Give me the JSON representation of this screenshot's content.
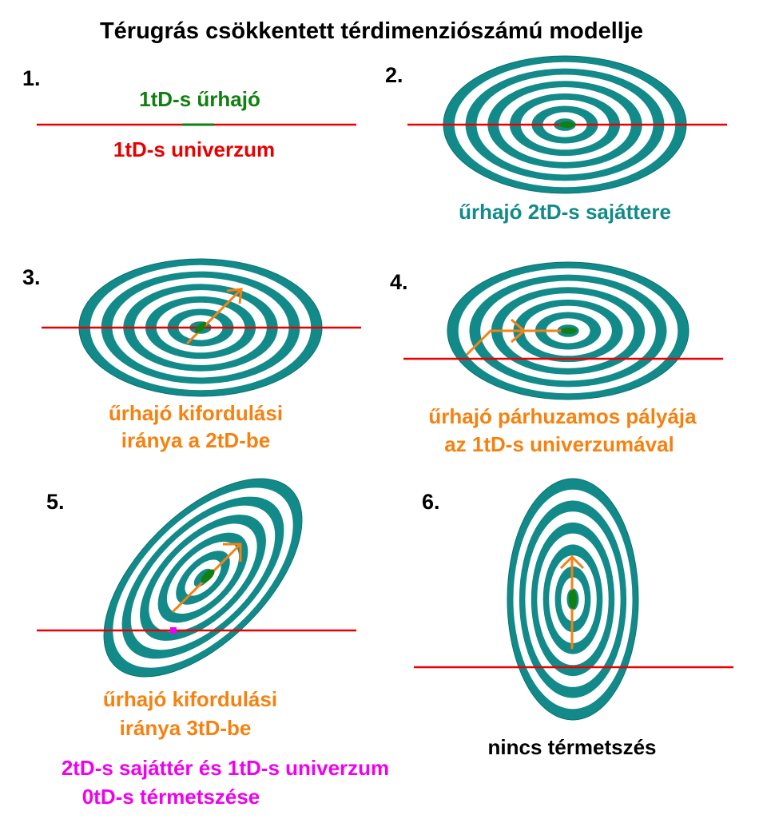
{
  "title": "Térugrás csökkentett térdimenziószámú modellje",
  "colors": {
    "teal": "#138a8a",
    "red": "#e80000",
    "green": "#108010",
    "orange": "#f58210",
    "magenta": "#f000f0",
    "black": "#000000"
  },
  "panels": [
    {
      "number": "1.",
      "labels": [
        "1tD-s űrhajó",
        "1tD-s univerzum"
      ]
    },
    {
      "number": "2.",
      "labels": [
        "űrhajó 2tD-s sajáttere"
      ]
    },
    {
      "number": "3.",
      "labels": [
        "űrhajó kifordulási",
        "iránya a 2tD-be"
      ]
    },
    {
      "number": "4.",
      "labels": [
        "űrhajó párhuzamos pályája",
        "az 1tD-s univerzumával"
      ]
    },
    {
      "number": "5.",
      "labels": [
        "űrhajó kifordulási",
        "iránya 3tD-be",
        "2tD-s sajáttér és 1tD-s univerzum",
        "0tD-s térmetszése"
      ]
    },
    {
      "number": "6.",
      "labels": [
        "nincs térmetszés"
      ]
    }
  ]
}
